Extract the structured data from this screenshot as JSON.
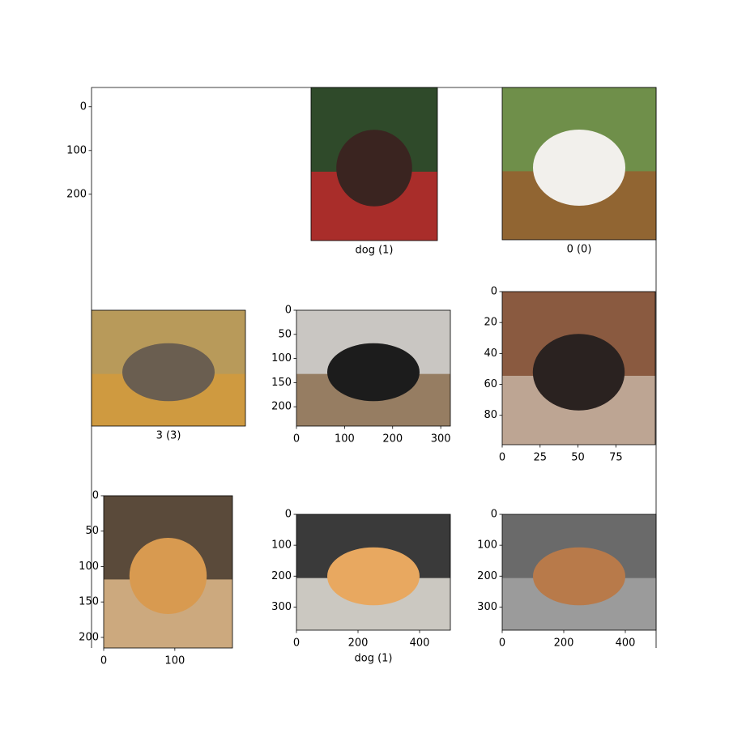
{
  "panels": [
    {
      "yticks": [
        0,
        100,
        200
      ],
      "ylim": [
        -44,
        1237
      ]
    },
    {
      "caption": "dog (1)"
    },
    {
      "caption": "0 (0)"
    },
    {
      "caption": "3 (3)"
    },
    {
      "xticks": [
        0,
        100,
        200,
        300
      ],
      "xlim": [
        0,
        320
      ],
      "yticks": [
        0,
        50,
        100,
        150,
        200
      ],
      "ylim": [
        0,
        240
      ]
    },
    {
      "xticks": [
        0,
        25,
        50,
        75
      ],
      "xlim": [
        0,
        101
      ],
      "yticks": [
        0,
        20,
        40,
        60,
        80
      ],
      "ylim": [
        0,
        99
      ]
    },
    {
      "xticks": [
        0,
        100
      ],
      "xlim": [
        0,
        181
      ],
      "yticks": [
        0,
        50,
        100,
        150,
        200
      ],
      "ylim": [
        0,
        215
      ]
    },
    {
      "xticks": [
        0,
        200,
        400
      ],
      "xlim": [
        0,
        500
      ],
      "yticks": [
        0,
        100,
        200,
        300
      ],
      "ylim": [
        0,
        375
      ],
      "caption": "dog (1)"
    },
    {
      "xticks": [
        0,
        200,
        400
      ],
      "xlim": [
        0,
        500
      ],
      "yticks": [
        0,
        100,
        200,
        300
      ],
      "ylim": [
        0,
        375
      ]
    }
  ]
}
